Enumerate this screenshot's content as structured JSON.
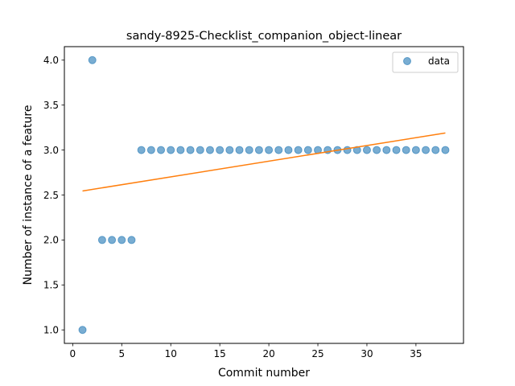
{
  "chart_data": {
    "type": "scatter",
    "title": "sandy-8925-Checklist_companion_object-linear",
    "xlabel": "Commit number",
    "ylabel": "Number of instance of a feature",
    "xlim": [
      -0.85,
      39.85
    ],
    "ylim": [
      0.85,
      4.15
    ],
    "xticks": [
      0,
      5,
      10,
      15,
      20,
      25,
      30,
      35
    ],
    "yticks": [
      1.0,
      1.5,
      2.0,
      2.5,
      3.0,
      3.5,
      4.0
    ],
    "ytick_labels": [
      "1.0",
      "1.5",
      "2.0",
      "2.5",
      "3.0",
      "3.5",
      "4.0"
    ],
    "grid": false,
    "legend": {
      "placement": "top-right",
      "entries": [
        "data"
      ]
    },
    "series": [
      {
        "name": "data",
        "kind": "scatter",
        "color": "#1f77b4",
        "x": [
          1,
          2,
          3,
          4,
          5,
          6,
          7,
          8,
          9,
          10,
          11,
          12,
          13,
          14,
          15,
          16,
          17,
          18,
          19,
          20,
          21,
          22,
          23,
          24,
          25,
          26,
          27,
          28,
          29,
          30,
          31,
          32,
          33,
          34,
          35,
          36,
          37,
          38
        ],
        "y": [
          1,
          4,
          2,
          2,
          2,
          2,
          3,
          3,
          3,
          3,
          3,
          3,
          3,
          3,
          3,
          3,
          3,
          3,
          3,
          3,
          3,
          3,
          3,
          3,
          3,
          3,
          3,
          3,
          3,
          3,
          3,
          3,
          3,
          3,
          3,
          3,
          3,
          3
        ]
      },
      {
        "kind": "line",
        "color": "#ff7f0e",
        "x": [
          1,
          38
        ],
        "y": [
          2.545,
          3.19
        ]
      }
    ]
  }
}
